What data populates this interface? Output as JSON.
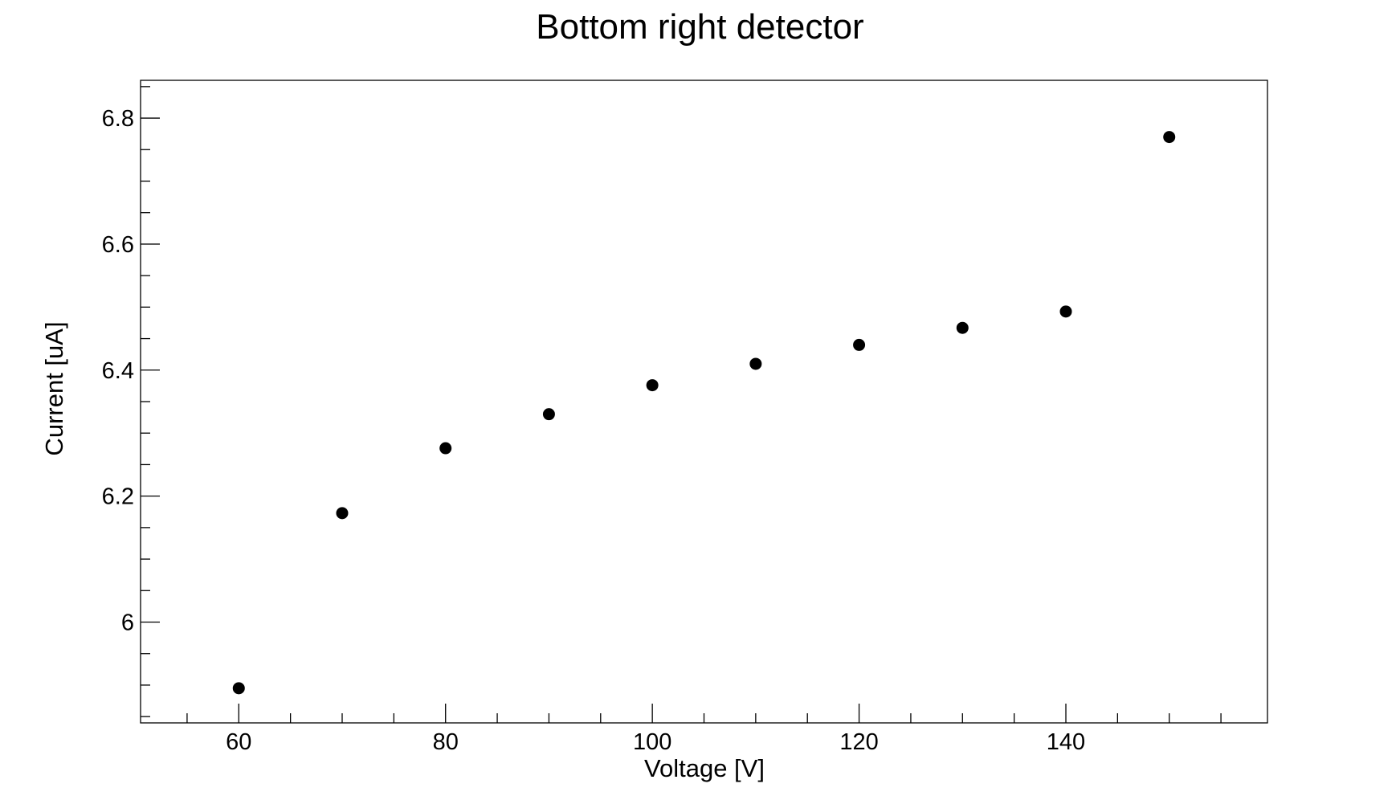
{
  "chart_data": {
    "type": "scatter",
    "title": "Bottom right detector",
    "xlabel": "Voltage [V]",
    "ylabel": "Current [uA]",
    "xlim": [
      50.5,
      159.5
    ],
    "ylim": [
      5.84,
      6.86
    ],
    "x_major_ticks": [
      60,
      80,
      100,
      120,
      140
    ],
    "x_tick_labels": [
      "60",
      "80",
      "100",
      "120",
      "140"
    ],
    "x_minor_step": 5,
    "y_major_ticks": [
      6.0,
      6.2,
      6.4,
      6.6,
      6.8
    ],
    "y_tick_labels": [
      "6",
      "6.2",
      "6.4",
      "6.6",
      "6.8"
    ],
    "y_minor_step": 0.05,
    "grid": false,
    "legend": "none",
    "marker_color": "#000000",
    "series": [
      {
        "x": [
          60,
          70,
          80,
          90,
          100,
          110,
          120,
          130,
          140,
          150
        ],
        "y": [
          5.895,
          6.173,
          6.276,
          6.33,
          6.376,
          6.41,
          6.44,
          6.467,
          6.493,
          6.77
        ]
      }
    ]
  }
}
